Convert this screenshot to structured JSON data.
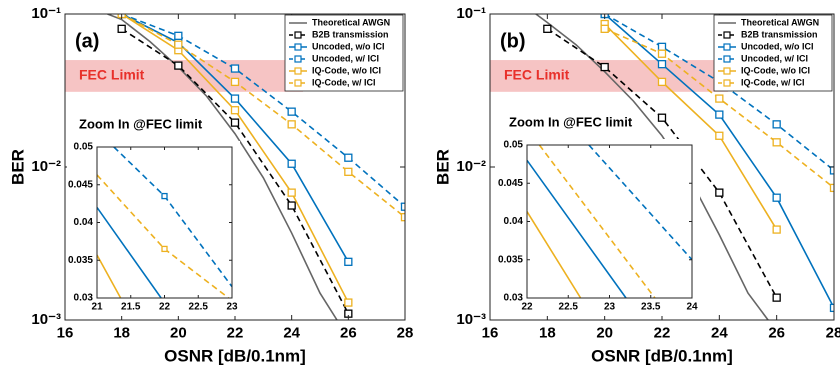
{
  "chart_data": [
    {
      "type": "line",
      "panel_label": "(a)",
      "xlabel": "OSNR [dB/0.1nm]",
      "ylabel": "BER",
      "xlim": [
        16,
        28
      ],
      "ylim": [
        0.001,
        0.1
      ],
      "log_y": true,
      "xticks": [
        16,
        18,
        20,
        22,
        24,
        26,
        28
      ],
      "yticks": [
        {
          "value": 0.001,
          "label": "10⁻³"
        },
        {
          "value": 0.01,
          "label": "10⁻²"
        },
        {
          "value": 0.1,
          "label": "10⁻¹"
        }
      ],
      "legend": "upper right",
      "fec_band": {
        "label": "FEC Limit",
        "x": [
          16,
          24.4
        ],
        "y": [
          0.031,
          0.05
        ],
        "color": "#f6c4c4"
      },
      "series": [
        {
          "name": "Theoretical AWGN",
          "color": "#666666",
          "dash": false,
          "marker": false,
          "x": [
            17.5,
            18,
            19,
            20,
            21,
            22,
            23,
            24,
            25,
            25.6
          ],
          "values": [
            0.1,
            0.092,
            0.066,
            0.045,
            0.029,
            0.0165,
            0.0085,
            0.0037,
            0.0015,
            0.001
          ]
        },
        {
          "name": "B2B transmission",
          "color": "#000000",
          "dash": true,
          "marker": true,
          "x": [
            18,
            20,
            22,
            24,
            26
          ],
          "values": [
            0.08,
            0.046,
            0.0195,
            0.0056,
            0.0011
          ]
        },
        {
          "name": "Uncoded, w/o ICI",
          "color": "#0072bd",
          "dash": false,
          "marker": true,
          "x": [
            18,
            20,
            22,
            24,
            26
          ],
          "values": [
            0.1,
            0.065,
            0.028,
            0.0105,
            0.0024
          ]
        },
        {
          "name": "Uncoded, w/ ICI",
          "color": "#0072bd",
          "dash": true,
          "marker": true,
          "x": [
            18,
            20,
            22,
            24,
            26,
            28
          ],
          "values": [
            0.1,
            0.072,
            0.044,
            0.023,
            0.0115,
            0.0055
          ]
        },
        {
          "name": "IQ-Code, w/o ICI",
          "color": "#edb120",
          "dash": false,
          "marker": true,
          "x": [
            18,
            20,
            22,
            24,
            26
          ],
          "values": [
            0.1,
            0.058,
            0.0235,
            0.0068,
            0.0013
          ]
        },
        {
          "name": "IQ-Code, w/ ICI",
          "color": "#edb120",
          "dash": true,
          "marker": true,
          "x": [
            18,
            20,
            22,
            24,
            26,
            28
          ],
          "values": [
            0.1,
            0.063,
            0.036,
            0.019,
            0.0093,
            0.0047
          ]
        }
      ],
      "inset": {
        "type": "line",
        "title": "Zoom In @FEC limit",
        "xlim": [
          21,
          23
        ],
        "ylim": [
          0.03,
          0.05
        ],
        "xticks": [
          21,
          21.5,
          22,
          22.5,
          23
        ],
        "yticks": [
          0.03,
          0.035,
          0.04,
          0.045,
          0.05
        ],
        "series": [
          {
            "color": "#0072bd",
            "dash": true,
            "x": [
              21.25,
              22,
              23
            ],
            "values": [
              0.05,
              0.0435,
              0.0315
            ]
          },
          {
            "color": "#edb120",
            "dash": true,
            "x": [
              21,
              22,
              22.95
            ],
            "values": [
              0.0463,
              0.0365,
              0.03
            ]
          },
          {
            "color": "#0072bd",
            "dash": false,
            "x": [
              21,
              21.95
            ],
            "values": [
              0.042,
              0.03
            ]
          },
          {
            "color": "#edb120",
            "dash": false,
            "x": [
              21,
              21.35
            ],
            "values": [
              0.0357,
              0.03
            ]
          }
        ]
      }
    },
    {
      "type": "line",
      "panel_label": "(b)",
      "xlabel": "OSNR [dB/0.1nm]",
      "ylabel": "BER",
      "xlim": [
        16,
        28
      ],
      "ylim": [
        0.001,
        0.1
      ],
      "log_y": true,
      "xticks": [
        16,
        18,
        20,
        22,
        24,
        26,
        28
      ],
      "yticks": [
        {
          "value": 0.001,
          "label": "10⁻³"
        },
        {
          "value": 0.01,
          "label": "10⁻²"
        },
        {
          "value": 0.1,
          "label": "10⁻¹"
        }
      ],
      "legend": "upper right",
      "fec_band": {
        "label": "FEC Limit",
        "x": [
          16,
          24.3
        ],
        "y": [
          0.031,
          0.05
        ],
        "color": "#f6c4c4"
      },
      "series": [
        {
          "name": "Theoretical AWGN",
          "color": "#666666",
          "dash": false,
          "marker": false,
          "x": [
            17.6,
            18,
            19,
            20,
            21,
            22,
            23,
            24,
            25,
            25.7
          ],
          "values": [
            0.1,
            0.088,
            0.063,
            0.042,
            0.027,
            0.016,
            0.0082,
            0.0036,
            0.0015,
            0.001
          ]
        },
        {
          "name": "B2B transmission",
          "color": "#000000",
          "dash": true,
          "marker": true,
          "x": [
            18,
            20,
            22,
            24,
            26
          ],
          "values": [
            0.08,
            0.045,
            0.021,
            0.0068,
            0.0014
          ]
        },
        {
          "name": "Uncoded, w/o ICI",
          "color": "#0072bd",
          "dash": false,
          "marker": true,
          "x": [
            20,
            22,
            24,
            26,
            28
          ],
          "values": [
            0.1,
            0.047,
            0.022,
            0.0063,
            0.0012
          ]
        },
        {
          "name": "Uncoded, w/ ICI",
          "color": "#0072bd",
          "dash": true,
          "marker": true,
          "x": [
            20,
            22,
            24,
            26,
            28
          ],
          "values": [
            0.1,
            0.061,
            0.036,
            0.019,
            0.0095
          ]
        },
        {
          "name": "IQ-Code, w/o ICI",
          "color": "#edb120",
          "dash": false,
          "marker": true,
          "x": [
            20,
            22,
            24,
            26
          ],
          "values": [
            0.086,
            0.036,
            0.016,
            0.0039
          ]
        },
        {
          "name": "IQ-Code, w/ ICI",
          "color": "#edb120",
          "dash": true,
          "marker": true,
          "x": [
            20,
            22,
            24,
            26,
            28
          ],
          "values": [
            0.08,
            0.055,
            0.028,
            0.0145,
            0.0073
          ]
        }
      ],
      "inset": {
        "type": "line",
        "title": "Zoom In @FEC limit",
        "xlim": [
          22,
          24
        ],
        "ylim": [
          0.03,
          0.05
        ],
        "xticks": [
          22,
          22.5,
          23,
          23.5,
          24
        ],
        "yticks": [
          0.03,
          0.035,
          0.04,
          0.045,
          0.05
        ],
        "series": [
          {
            "color": "#0072bd",
            "dash": false,
            "x": [
              22,
              23.2
            ],
            "values": [
              0.048,
              0.03
            ]
          },
          {
            "color": "#edb120",
            "dash": false,
            "x": [
              22,
              22.65
            ],
            "values": [
              0.0413,
              0.03
            ]
          },
          {
            "color": "#0072bd",
            "dash": true,
            "x": [
              22.75,
              24
            ],
            "values": [
              0.05,
              0.035
            ]
          },
          {
            "color": "#edb120",
            "dash": true,
            "x": [
              22.15,
              23.55
            ],
            "values": [
              0.05,
              0.03
            ]
          }
        ]
      }
    }
  ]
}
